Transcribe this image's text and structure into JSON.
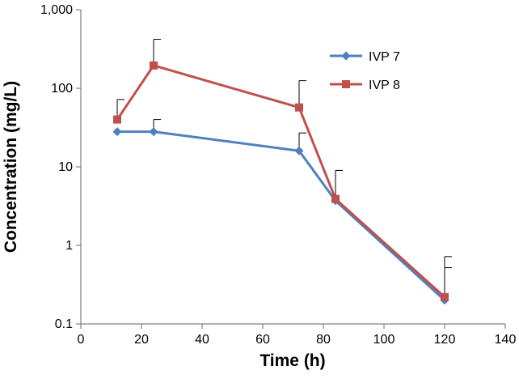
{
  "chart_data": {
    "type": "line",
    "title": "",
    "xlabel": "Time (h)",
    "ylabel": "Concentration (mg/L)",
    "xlim": [
      0,
      140
    ],
    "ylim": [
      0.1,
      1000
    ],
    "yscale": "log",
    "grid": false,
    "legend_position": "top-right",
    "xticks": [
      0,
      20,
      40,
      60,
      80,
      100,
      120,
      140
    ],
    "xtick_labels": [
      "0",
      "20",
      "40",
      "60",
      "80",
      "100",
      "120",
      "140"
    ],
    "yticks": [
      0.1,
      1,
      10,
      100,
      1000
    ],
    "ytick_labels": [
      "0.1",
      "1",
      "10",
      "100",
      "1,000"
    ],
    "series": [
      {
        "name": "IVP 7",
        "color": "#4f81bd",
        "marker": "diamond",
        "x": [
          12,
          24,
          72,
          84,
          120
        ],
        "y": [
          28,
          28,
          16,
          3.7,
          0.2
        ],
        "error_upper": [
          null,
          40,
          27,
          9,
          0.52
        ]
      },
      {
        "name": "IVP 8",
        "color": "#c0504d",
        "marker": "square",
        "x": [
          12,
          24,
          72,
          84,
          120
        ],
        "y": [
          40,
          195,
          57,
          3.9,
          0.22
        ],
        "error_upper": [
          72,
          420,
          125,
          9,
          0.72
        ]
      }
    ]
  }
}
